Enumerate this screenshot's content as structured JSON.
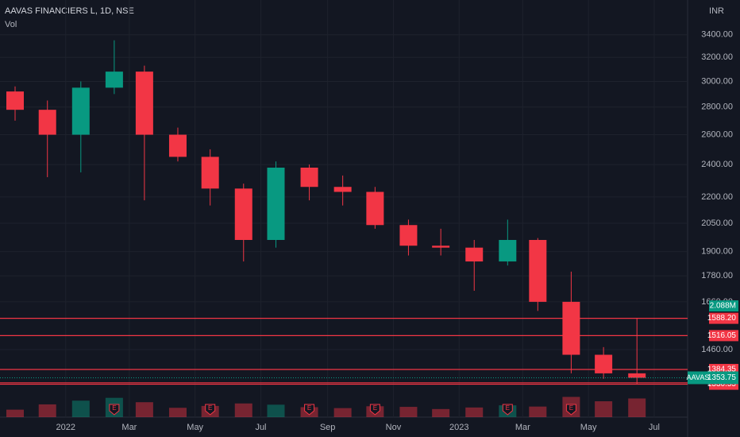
{
  "chart_data": {
    "type": "candlestick",
    "title": "AAVAS FINANCIERS L, 1D, NSE",
    "volume_title": "Vol",
    "currency": "INR",
    "log_scale": true,
    "up_color": "#089981",
    "down_color": "#f23645",
    "x": [
      "2021-11",
      "2021-12",
      "2022-01",
      "2022-02",
      "2022-03",
      "2022-04",
      "2022-05",
      "2022-06",
      "2022-07",
      "2022-08",
      "2022-09",
      "2022-10",
      "2022-11",
      "2022-12",
      "2023-01",
      "2023-02",
      "2023-03",
      "2023-04",
      "2023-05",
      "2023-06"
    ],
    "open": [
      2920,
      2780,
      2600,
      2950,
      3080,
      2600,
      2450,
      2250,
      1960,
      2380,
      2260,
      2230,
      2040,
      1930,
      1920,
      1850,
      1960,
      1660,
      1440,
      1370
    ],
    "high": [
      2960,
      2850,
      3000,
      3350,
      3130,
      2650,
      2500,
      2280,
      2420,
      2400,
      2330,
      2260,
      2070,
      2020,
      1960,
      2070,
      1970,
      1800,
      1470,
      1590
    ],
    "low": [
      2700,
      2320,
      2350,
      2900,
      2180,
      2420,
      2150,
      1850,
      1920,
      2180,
      2150,
      2020,
      1880,
      1880,
      1710,
      1830,
      1620,
      1370,
      1350,
      1330
    ],
    "close": [
      2780,
      2600,
      2950,
      3080,
      2600,
      2450,
      2250,
      1960,
      2380,
      2260,
      2230,
      2040,
      1930,
      1920,
      1850,
      1960,
      1660,
      1440,
      1370,
      1353.75
    ],
    "volume": [
      2.4,
      4.1,
      5.3,
      6.2,
      4.8,
      3.0,
      3.6,
      4.4,
      4.0,
      3.2,
      2.9,
      3.5,
      3.3,
      2.6,
      3.1,
      3.8,
      3.4,
      6.5,
      5.1,
      6.0
    ],
    "vlim": [
      0,
      12
    ],
    "xlim": [
      "2021-11",
      "2023-08"
    ],
    "xticks": [
      {
        "value": "2022-01",
        "label": "2022"
      },
      {
        "value": "2022-03",
        "label": "Mar"
      },
      {
        "value": "2022-05",
        "label": "May"
      },
      {
        "value": "2022-07",
        "label": "Jul"
      },
      {
        "value": "2022-09",
        "label": "Sep"
      },
      {
        "value": "2022-11",
        "label": "Nov"
      },
      {
        "value": "2023-01",
        "label": "2023"
      },
      {
        "value": "2023-03",
        "label": "Mar"
      },
      {
        "value": "2023-05",
        "label": "May"
      },
      {
        "value": "2023-07",
        "label": "Jul"
      }
    ],
    "ylim": [
      1218,
      3733
    ],
    "yticks": [
      {
        "value": 3400,
        "label": "3400.00"
      },
      {
        "value": 3200,
        "label": "3200.00"
      },
      {
        "value": 3000,
        "label": "3000.00"
      },
      {
        "value": 2800,
        "label": "2800.00"
      },
      {
        "value": 2600,
        "label": "2600.00"
      },
      {
        "value": 2400,
        "label": "2400.00"
      },
      {
        "value": 2200,
        "label": "2200.00"
      },
      {
        "value": 2050,
        "label": "2050.00"
      },
      {
        "value": 1900,
        "label": "1900.00"
      },
      {
        "value": 1780,
        "label": "1780.00"
      },
      {
        "value": 1660,
        "label": "1660.00"
      },
      {
        "value": 1460,
        "label": "1460.00"
      }
    ],
    "levels": [
      {
        "value": 1588.2,
        "label": "1588.20"
      },
      {
        "value": 1516.05,
        "label": "1516.05"
      },
      {
        "value": 1384.35,
        "label": "1384.35"
      },
      {
        "value": 1335.5,
        "label": "1335.50"
      },
      {
        "value": 1330.55,
        "label": "1330.55"
      }
    ],
    "level_color": "#f23645",
    "last_price": {
      "symbol": "AAVAS",
      "value": 1353.75,
      "label": "1353.75"
    },
    "last_volume": {
      "value": 2088000,
      "label": "2.088M"
    },
    "earnings": {
      "label": "E",
      "x": [
        "2022-02",
        "2022-05",
        "2022-08",
        "2022-10",
        "2023-02",
        "2023-04"
      ]
    }
  }
}
